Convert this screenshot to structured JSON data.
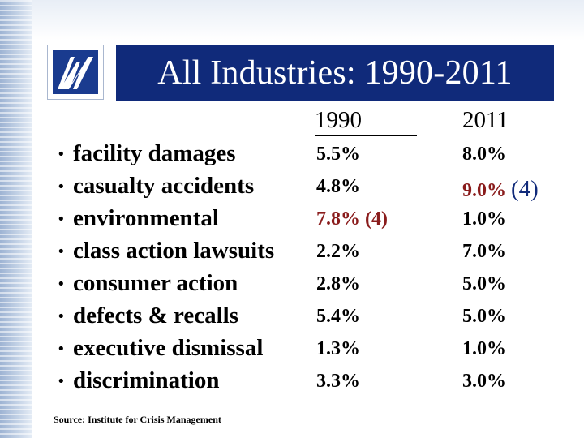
{
  "slide": {
    "title": "All Industries: 1990-2011",
    "columns": {
      "year1": "1990",
      "year2": "2011"
    },
    "rows": [
      {
        "label": "facility damages",
        "v1990": "5.5%",
        "v2011": "8.0%"
      },
      {
        "label": "casualty accidents",
        "v1990": "4.8%",
        "v2011": "9.0%",
        "v2011_note": "(4)"
      },
      {
        "label": "environmental",
        "v1990": "7.8% (4)",
        "v2011": "1.0%"
      },
      {
        "label": "class action lawsuits",
        "v1990": "2.2%",
        "v2011": "7.0%"
      },
      {
        "label": "consumer action",
        "v1990": "2.8%",
        "v2011": "5.0%"
      },
      {
        "label": "defects & recalls",
        "v1990": "5.4%",
        "v2011": "5.0%"
      },
      {
        "label": "executive dismissal",
        "v1990": "1.3%",
        "v2011": "1.0%"
      },
      {
        "label": "discrimination",
        "v1990": "3.3%",
        "v2011": "3.0%"
      }
    ],
    "bullet": "•",
    "source": "Source: Institute for Crisis Management",
    "colors": {
      "title_bar": "#102a7a",
      "highlight": "#8a1c1c"
    }
  }
}
